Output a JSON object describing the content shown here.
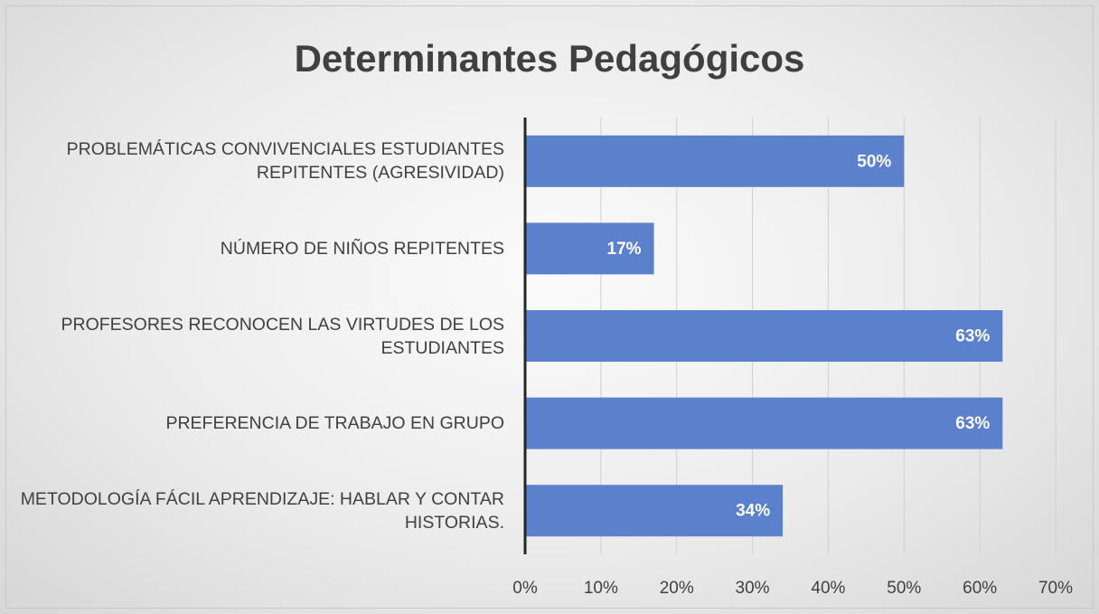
{
  "chart_data": {
    "type": "hbar",
    "title": "Determinantes Pedagógicos",
    "categories": [
      "PROBLEMÁTICAS CONVIVENCIALES ESTUDIANTES REPITENTES (AGRESIVIDAD)",
      "NÚMERO DE NIÑOS REPITENTES",
      "PROFESORES RECONOCEN LAS VIRTUDES DE LOS ESTUDIANTES",
      "PREFERENCIA DE TRABAJO EN GRUPO",
      "METODOLOGÍA FÁCIL APRENDIZAJE: HABLAR Y CONTAR HISTORIAS."
    ],
    "values": [
      50,
      17,
      63,
      63,
      34
    ],
    "value_labels": [
      "50%",
      "17%",
      "63%",
      "63%",
      "34%"
    ],
    "color": "#5b80cc",
    "xlim": [
      0,
      70
    ],
    "xticks": [
      {
        "value": 0,
        "label": "0%"
      },
      {
        "value": 10,
        "label": "10%"
      },
      {
        "value": 20,
        "label": "20%"
      },
      {
        "value": 30,
        "label": "30%"
      },
      {
        "value": 40,
        "label": "40%"
      },
      {
        "value": 50,
        "label": "50%"
      },
      {
        "value": 60,
        "label": "60%"
      },
      {
        "value": 70,
        "label": "70%"
      }
    ],
    "grid": true
  }
}
